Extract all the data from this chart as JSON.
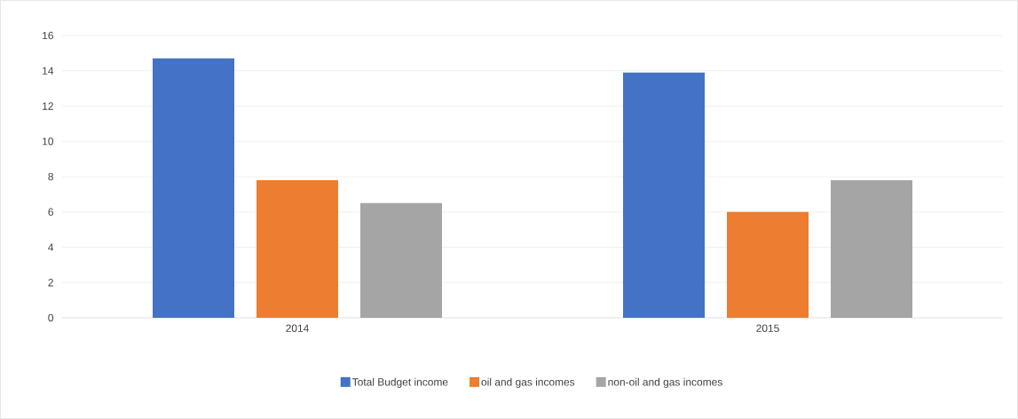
{
  "chart_data": {
    "type": "bar",
    "categories": [
      "2014",
      "2015"
    ],
    "series": [
      {
        "name": "Total Budget income",
        "color": "#4472c4",
        "values": [
          14.7,
          13.9
        ]
      },
      {
        "name": "oil and gas incomes",
        "color": "#ed7d31",
        "values": [
          7.8,
          6.0
        ]
      },
      {
        "name": "non-oil and gas incomes",
        "color": "#a5a5a5",
        "values": [
          6.5,
          7.8
        ]
      }
    ],
    "ylim": [
      0,
      16
    ],
    "yticks": [
      0,
      2,
      4,
      6,
      8,
      10,
      12,
      14,
      16
    ],
    "grid": "y",
    "legend": "bottom"
  }
}
